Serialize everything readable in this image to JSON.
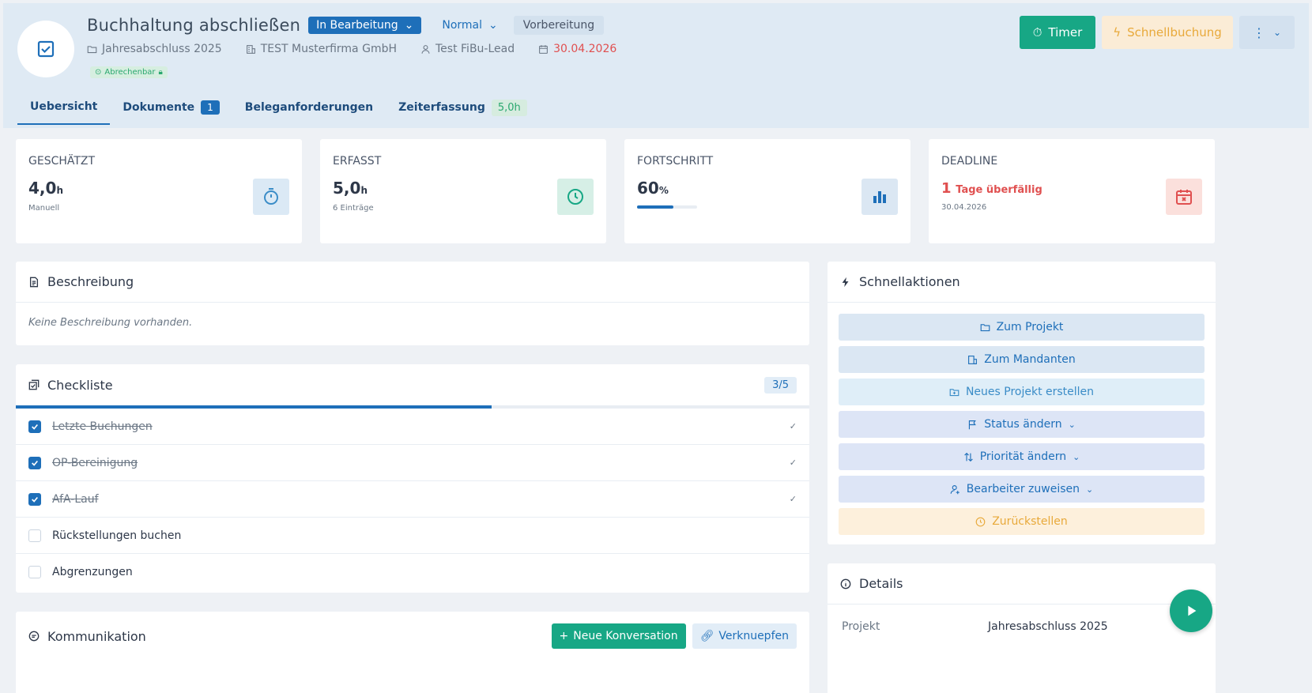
{
  "header": {
    "title": "Buchhaltung abschließen",
    "status": "In Bearbeitung",
    "priority": "Normal",
    "phase": "Vorbereitung",
    "project": "Jahresabschluss 2025",
    "client": "TEST Musterfirma GmbH",
    "assignee": "Test FiBu-Lead",
    "due_date": "30.04.2026",
    "billable_label": "Abrechenbar",
    "timer_label": "Timer",
    "quick_label": "Schnellbuchung"
  },
  "tabs": [
    {
      "label": "Uebersicht"
    },
    {
      "label": "Dokumente",
      "count": "1"
    },
    {
      "label": "Beleganforderungen"
    },
    {
      "label": "Zeiterfassung",
      "hours": "5,0h"
    }
  ],
  "stats": {
    "estimated": {
      "label": "GESCHÄTZT",
      "value": "4,0",
      "unit": "h",
      "sub": "Manuell"
    },
    "logged": {
      "label": "ERFASST",
      "value": "5,0",
      "unit": "h",
      "sub": "6 Einträge"
    },
    "progress": {
      "label": "FORTSCHRITT",
      "value": "60",
      "unit": "%",
      "fraction": 0.6
    },
    "deadline": {
      "label": "DEADLINE",
      "value": "1",
      "text": "Tage überfällig",
      "sub": "30.04.2026"
    }
  },
  "description": {
    "title": "Beschreibung",
    "empty_text": "Keine Beschreibung vorhanden."
  },
  "checklist": {
    "title": "Checkliste",
    "count": "3/5",
    "fraction": 0.6,
    "items": [
      {
        "label": "Letzte Buchungen",
        "done": true
      },
      {
        "label": "OP-Bereinigung",
        "done": true
      },
      {
        "label": "AfA-Lauf",
        "done": true
      },
      {
        "label": "Rückstellungen buchen",
        "done": false
      },
      {
        "label": "Abgrenzungen",
        "done": false
      }
    ]
  },
  "communication": {
    "title": "Kommunikation",
    "new_label": "Neue Konversation",
    "link_label": "Verknuepfen"
  },
  "quick_actions": {
    "title": "Schnellaktionen",
    "items": [
      "Zum Projekt",
      "Zum Mandanten",
      "Neues Projekt erstellen",
      "Status ändern",
      "Priorität ändern",
      "Bearbeiter zuweisen",
      "Zurückstellen"
    ]
  },
  "details": {
    "title": "Details",
    "project_label": "Projekt",
    "project_value": "Jahresabschluss 2025"
  },
  "colors": {
    "primary": "#1e6fb9",
    "success": "#17a785",
    "danger": "#e05050",
    "warning": "#e8a93a"
  }
}
